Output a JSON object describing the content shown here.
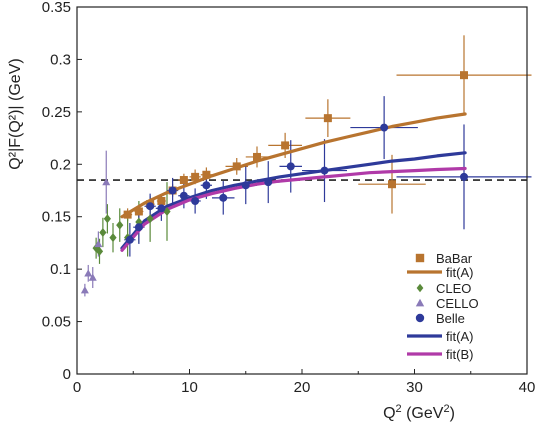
{
  "chart_data": {
    "type": "scatter",
    "xlabel_main": "Q",
    "xlabel_sup": "2",
    "xlabel_units": " (GeV",
    "xlabel_units_sup": "2",
    "xlabel_close": ")",
    "ylabel": "Q²|F(Q²)| (GeV)",
    "xlim": [
      0,
      40
    ],
    "ylim": [
      0,
      0.35
    ],
    "xticks": [
      "0",
      "10",
      "20",
      "30",
      "40"
    ],
    "yticks": [
      "0",
      "0.05",
      "0.1",
      "0.15",
      "0.2",
      "0.25",
      "0.3",
      "0.35"
    ],
    "reference_line": {
      "y": 0.185,
      "style": "dashed",
      "color": "#222222"
    },
    "series": [
      {
        "name": "BaBar",
        "marker": "square",
        "color": "#b8742f",
        "points": [
          {
            "x": 4.5,
            "y": 0.152,
            "ex": 0.4,
            "ey": 0.006
          },
          {
            "x": 5.5,
            "y": 0.155,
            "ex": 0.4,
            "ey": 0.006
          },
          {
            "x": 6.5,
            "y": 0.162,
            "ex": 0.4,
            "ey": 0.006
          },
          {
            "x": 7.5,
            "y": 0.165,
            "ex": 0.4,
            "ey": 0.006
          },
          {
            "x": 8.5,
            "y": 0.175,
            "ex": 0.4,
            "ey": 0.006
          },
          {
            "x": 9.5,
            "y": 0.185,
            "ex": 0.5,
            "ey": 0.006
          },
          {
            "x": 10.5,
            "y": 0.188,
            "ex": 0.5,
            "ey": 0.007
          },
          {
            "x": 11.5,
            "y": 0.19,
            "ex": 0.5,
            "ey": 0.007
          },
          {
            "x": 14.2,
            "y": 0.198,
            "ex": 1.0,
            "ey": 0.008
          },
          {
            "x": 16.0,
            "y": 0.207,
            "ex": 1.0,
            "ey": 0.01
          },
          {
            "x": 18.5,
            "y": 0.218,
            "ex": 1.5,
            "ey": 0.012
          },
          {
            "x": 22.3,
            "y": 0.244,
            "ex": 2.0,
            "ey": 0.018
          },
          {
            "x": 28.0,
            "y": 0.181,
            "ex": 3.0,
            "ey": 0.028
          },
          {
            "x": 34.4,
            "y": 0.285,
            "ex": 6.0,
            "ey": 0.038
          }
        ]
      },
      {
        "name": "CLEO",
        "marker": "diamond",
        "color": "#5a8a3a",
        "points": [
          {
            "x": 1.7,
            "y": 0.12,
            "ex": 0.0,
            "ey": 0.01
          },
          {
            "x": 2.0,
            "y": 0.117,
            "ex": 0.0,
            "ey": 0.012
          },
          {
            "x": 2.3,
            "y": 0.135,
            "ex": 0.0,
            "ey": 0.014
          },
          {
            "x": 2.7,
            "y": 0.148,
            "ex": 0.0,
            "ey": 0.014
          },
          {
            "x": 3.2,
            "y": 0.13,
            "ex": 0.0,
            "ey": 0.014
          },
          {
            "x": 3.8,
            "y": 0.142,
            "ex": 0.0,
            "ey": 0.016
          },
          {
            "x": 4.5,
            "y": 0.13,
            "ex": 0.0,
            "ey": 0.018
          },
          {
            "x": 5.5,
            "y": 0.145,
            "ex": 0.0,
            "ey": 0.02
          },
          {
            "x": 6.5,
            "y": 0.148,
            "ex": 0.0,
            "ey": 0.022
          },
          {
            "x": 8.0,
            "y": 0.155,
            "ex": 0.0,
            "ey": 0.028
          }
        ]
      },
      {
        "name": "CELLO",
        "marker": "triangle",
        "color": "#8a7ab8",
        "points": [
          {
            "x": 0.7,
            "y": 0.08,
            "ex": 0.0,
            "ey": 0.006
          },
          {
            "x": 1.0,
            "y": 0.096,
            "ex": 0.0,
            "ey": 0.008
          },
          {
            "x": 1.4,
            "y": 0.092,
            "ex": 0.0,
            "ey": 0.01
          },
          {
            "x": 1.9,
            "y": 0.124,
            "ex": 0.0,
            "ey": 0.012
          },
          {
            "x": 2.6,
            "y": 0.183,
            "ex": 0.0,
            "ey": 0.03
          }
        ]
      },
      {
        "name": "Belle",
        "marker": "circle",
        "color": "#2e3a9a",
        "points": [
          {
            "x": 4.7,
            "y": 0.128,
            "ex": 0.5,
            "ey": 0.016
          },
          {
            "x": 5.5,
            "y": 0.14,
            "ex": 0.5,
            "ey": 0.016
          },
          {
            "x": 6.5,
            "y": 0.16,
            "ex": 0.5,
            "ey": 0.012
          },
          {
            "x": 7.5,
            "y": 0.158,
            "ex": 0.5,
            "ey": 0.012
          },
          {
            "x": 8.5,
            "y": 0.175,
            "ex": 0.5,
            "ey": 0.012
          },
          {
            "x": 9.5,
            "y": 0.17,
            "ex": 0.5,
            "ey": 0.012
          },
          {
            "x": 10.5,
            "y": 0.165,
            "ex": 0.5,
            "ey": 0.012
          },
          {
            "x": 11.5,
            "y": 0.18,
            "ex": 0.5,
            "ey": 0.013
          },
          {
            "x": 13.0,
            "y": 0.168,
            "ex": 1.0,
            "ey": 0.016
          },
          {
            "x": 15.0,
            "y": 0.18,
            "ex": 1.0,
            "ey": 0.018
          },
          {
            "x": 17.0,
            "y": 0.183,
            "ex": 1.0,
            "ey": 0.02
          },
          {
            "x": 19.0,
            "y": 0.198,
            "ex": 1.0,
            "ey": 0.025
          },
          {
            "x": 22.0,
            "y": 0.194,
            "ex": 2.0,
            "ey": 0.03
          },
          {
            "x": 27.3,
            "y": 0.235,
            "ex": 3.0,
            "ey": 0.03
          },
          {
            "x": 34.4,
            "y": 0.188,
            "ex": 6.0,
            "ey": 0.05
          }
        ]
      }
    ],
    "fits": [
      {
        "name": "fit(A)",
        "group": "BaBar",
        "color": "#b8742f",
        "x": [
          4,
          6,
          8,
          10,
          12,
          14,
          16,
          18,
          20,
          22,
          24,
          26,
          28,
          30,
          32,
          34.5
        ],
        "y": [
          0.15,
          0.163,
          0.173,
          0.181,
          0.189,
          0.196,
          0.203,
          0.209,
          0.215,
          0.221,
          0.226,
          0.231,
          0.236,
          0.24,
          0.244,
          0.248
        ]
      },
      {
        "name": "fit(A)",
        "group": "Belle",
        "color": "#2e3a9a",
        "x": [
          4,
          6,
          8,
          10,
          12,
          14,
          16,
          18,
          20,
          22,
          24,
          26,
          28,
          30,
          32,
          34.5
        ],
        "y": [
          0.12,
          0.146,
          0.16,
          0.168,
          0.175,
          0.18,
          0.184,
          0.188,
          0.191,
          0.194,
          0.197,
          0.2,
          0.203,
          0.205,
          0.208,
          0.211
        ]
      },
      {
        "name": "fit(B)",
        "group": "Belle",
        "color": "#b03aa8",
        "x": [
          4,
          6,
          8,
          10,
          12,
          14,
          16,
          18,
          20,
          22,
          24,
          26,
          28,
          30,
          32,
          34.5
        ],
        "y": [
          0.118,
          0.143,
          0.157,
          0.166,
          0.172,
          0.177,
          0.181,
          0.184,
          0.186,
          0.188,
          0.19,
          0.192,
          0.193,
          0.194,
          0.195,
          0.196
        ]
      }
    ],
    "legend": [
      {
        "label": "BaBar",
        "type": "marker",
        "marker": "square",
        "color": "#b8742f"
      },
      {
        "label": "fit(A)",
        "type": "line",
        "color": "#b8742f"
      },
      {
        "label": "CLEO",
        "type": "marker",
        "marker": "diamond",
        "color": "#5a8a3a"
      },
      {
        "label": "CELLO",
        "type": "marker",
        "marker": "triangle",
        "color": "#8a7ab8"
      },
      {
        "label": "Belle",
        "type": "marker",
        "marker": "circle",
        "color": "#2e3a9a"
      },
      {
        "label": "fit(A)",
        "type": "line",
        "color": "#2e3a9a"
      },
      {
        "label": "fit(B)",
        "type": "line",
        "color": "#b03aa8"
      }
    ],
    "legend_position": "lower-right",
    "grid": false
  }
}
